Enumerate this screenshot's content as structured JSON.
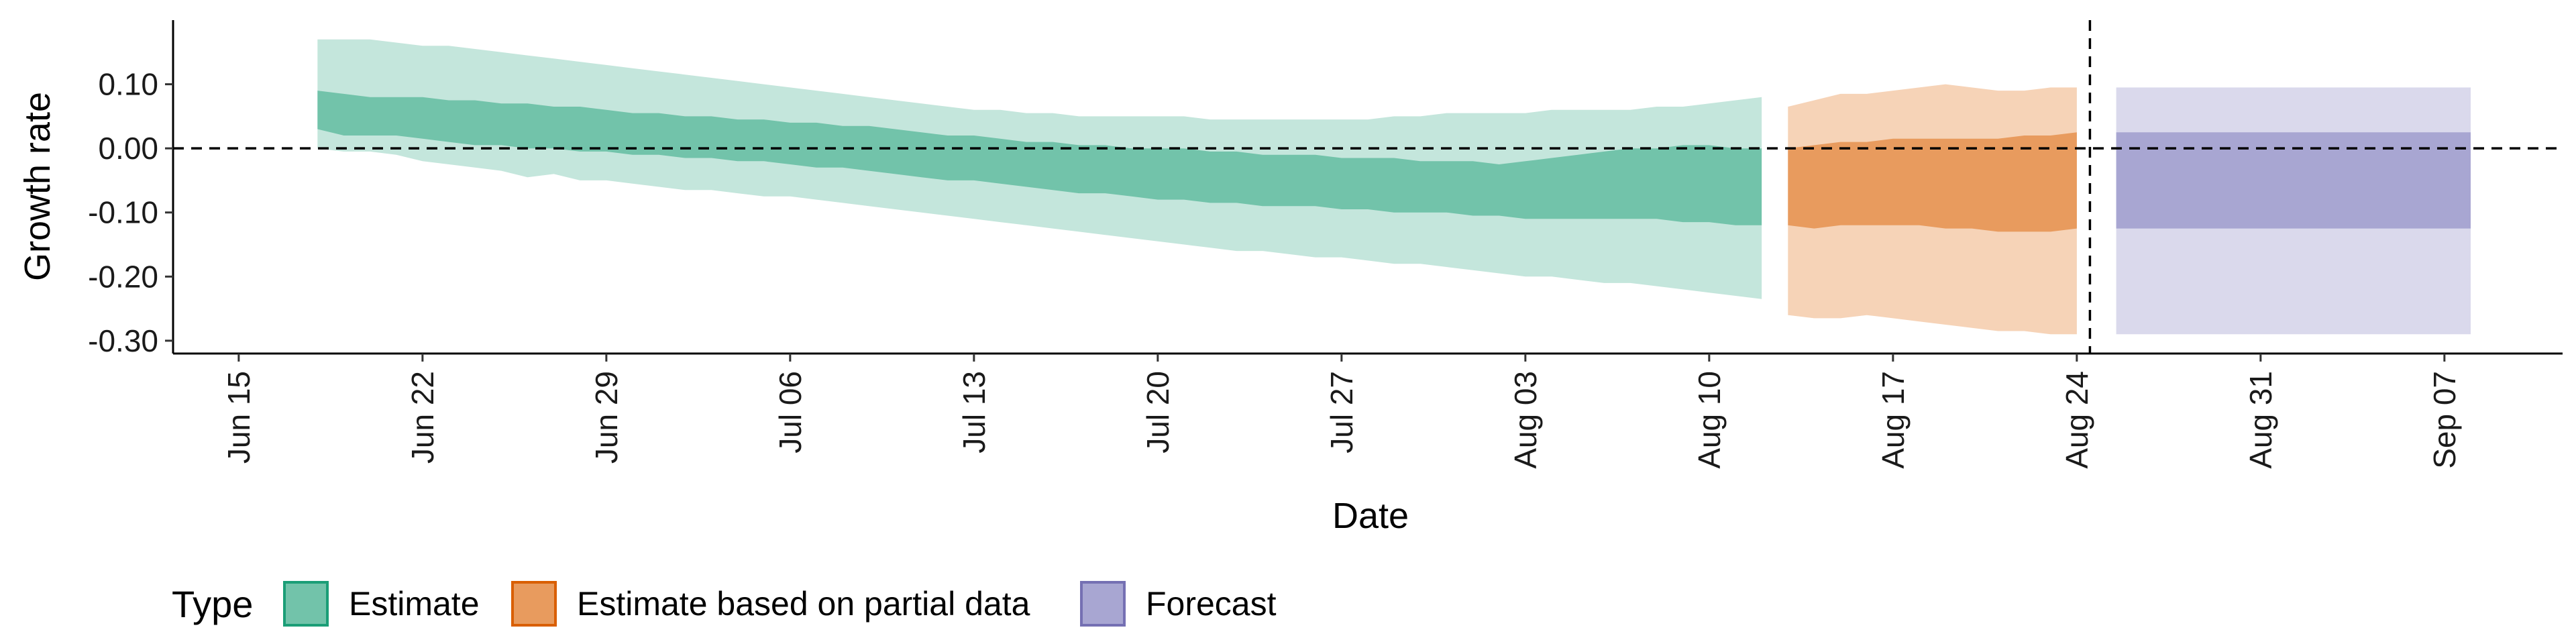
{
  "chart_data": {
    "type": "area",
    "xlabel": "Date",
    "ylabel": "Growth rate",
    "ylim": [
      -0.32,
      0.2
    ],
    "yticks": [
      {
        "value": 0.1,
        "label": "0.10"
      },
      {
        "value": 0.0,
        "label": "0.00"
      },
      {
        "value": -0.1,
        "label": "-0.10"
      },
      {
        "value": -0.2,
        "label": "-0.20"
      },
      {
        "value": -0.3,
        "label": "-0.30"
      }
    ],
    "xrange_days": [
      -2.5,
      88.5
    ],
    "xticks": [
      {
        "day": 0,
        "label": "Jun 15"
      },
      {
        "day": 7,
        "label": "Jun 22"
      },
      {
        "day": 14,
        "label": "Jun 29"
      },
      {
        "day": 21,
        "label": "Jul 06"
      },
      {
        "day": 28,
        "label": "Jul 13"
      },
      {
        "day": 35,
        "label": "Jul 20"
      },
      {
        "day": 42,
        "label": "Jul 27"
      },
      {
        "day": 49,
        "label": "Aug 03"
      },
      {
        "day": 56,
        "label": "Aug 10"
      },
      {
        "day": 63,
        "label": "Aug 17"
      },
      {
        "day": 70,
        "label": "Aug 24"
      },
      {
        "day": 77,
        "label": "Aug 31"
      },
      {
        "day": 84,
        "label": "Sep 07"
      }
    ],
    "hline": 0,
    "vline_day": 70.5,
    "grid": false,
    "legend": {
      "title": "Type",
      "position": "bottom",
      "entries": [
        {
          "label": "Estimate",
          "fill": "#72c3aa",
          "stroke": "#1b9e77"
        },
        {
          "label": "Estimate based on partial data",
          "fill": "#e89b5e",
          "stroke": "#d95f02"
        },
        {
          "label": "Forecast",
          "fill": "#a8a6d2",
          "stroke": "#7570b3"
        }
      ]
    },
    "series": [
      {
        "name": "Estimate",
        "outer_fill": "#c4e6dc",
        "inner_fill": "#72c3aa",
        "x": [
          3,
          4,
          5,
          6,
          7,
          8,
          9,
          10,
          11,
          12,
          13,
          14,
          15,
          16,
          17,
          18,
          19,
          20,
          21,
          22,
          23,
          24,
          25,
          26,
          27,
          28,
          29,
          30,
          31,
          32,
          33,
          34,
          35,
          36,
          37,
          38,
          39,
          40,
          41,
          42,
          43,
          44,
          45,
          46,
          47,
          48,
          49,
          50,
          51,
          52,
          53,
          54,
          55,
          56,
          57,
          58
        ],
        "outer_lo": [
          0.0,
          -0.005,
          -0.005,
          -0.01,
          -0.02,
          -0.025,
          -0.03,
          -0.035,
          -0.045,
          -0.04,
          -0.05,
          -0.05,
          -0.055,
          -0.06,
          -0.065,
          -0.065,
          -0.07,
          -0.075,
          -0.075,
          -0.08,
          -0.085,
          -0.09,
          -0.095,
          -0.1,
          -0.105,
          -0.11,
          -0.115,
          -0.12,
          -0.125,
          -0.13,
          -0.135,
          -0.14,
          -0.145,
          -0.15,
          -0.155,
          -0.16,
          -0.16,
          -0.165,
          -0.17,
          -0.17,
          -0.175,
          -0.18,
          -0.18,
          -0.185,
          -0.19,
          -0.195,
          -0.2,
          -0.2,
          -0.205,
          -0.21,
          -0.21,
          -0.215,
          -0.22,
          -0.225,
          -0.23,
          -0.235
        ],
        "inner_lo": [
          0.03,
          0.02,
          0.02,
          0.02,
          0.015,
          0.01,
          0.005,
          0.005,
          0.0,
          0.0,
          -0.005,
          -0.005,
          -0.01,
          -0.01,
          -0.015,
          -0.015,
          -0.02,
          -0.02,
          -0.025,
          -0.03,
          -0.03,
          -0.035,
          -0.04,
          -0.045,
          -0.05,
          -0.05,
          -0.055,
          -0.06,
          -0.065,
          -0.07,
          -0.07,
          -0.075,
          -0.08,
          -0.08,
          -0.085,
          -0.085,
          -0.09,
          -0.09,
          -0.09,
          -0.095,
          -0.095,
          -0.1,
          -0.1,
          -0.1,
          -0.105,
          -0.105,
          -0.11,
          -0.11,
          -0.11,
          -0.11,
          -0.11,
          -0.11,
          -0.115,
          -0.115,
          -0.12,
          -0.12
        ],
        "inner_hi": [
          0.09,
          0.085,
          0.08,
          0.08,
          0.08,
          0.075,
          0.075,
          0.07,
          0.07,
          0.065,
          0.065,
          0.06,
          0.055,
          0.055,
          0.05,
          0.05,
          0.045,
          0.045,
          0.04,
          0.04,
          0.035,
          0.035,
          0.03,
          0.025,
          0.02,
          0.02,
          0.015,
          0.01,
          0.01,
          0.005,
          0.005,
          0.0,
          0.0,
          0.0,
          -0.005,
          -0.005,
          -0.01,
          -0.01,
          -0.01,
          -0.015,
          -0.015,
          -0.015,
          -0.02,
          -0.02,
          -0.02,
          -0.025,
          -0.02,
          -0.015,
          -0.01,
          -0.005,
          0.0,
          0.0,
          0.005,
          0.005,
          0.0,
          0.0
        ],
        "outer_hi": [
          0.17,
          0.17,
          0.17,
          0.165,
          0.16,
          0.16,
          0.155,
          0.15,
          0.145,
          0.14,
          0.135,
          0.13,
          0.125,
          0.12,
          0.115,
          0.11,
          0.105,
          0.1,
          0.095,
          0.09,
          0.085,
          0.08,
          0.075,
          0.07,
          0.065,
          0.06,
          0.06,
          0.055,
          0.055,
          0.05,
          0.05,
          0.05,
          0.05,
          0.05,
          0.045,
          0.045,
          0.045,
          0.045,
          0.045,
          0.045,
          0.045,
          0.05,
          0.05,
          0.055,
          0.055,
          0.055,
          0.055,
          0.06,
          0.06,
          0.06,
          0.06,
          0.065,
          0.065,
          0.07,
          0.075,
          0.08
        ]
      },
      {
        "name": "Estimate based on partial data",
        "outer_fill": "#f6d3b7",
        "inner_fill": "#e89b5e",
        "x": [
          59,
          60,
          61,
          62,
          63,
          64,
          65,
          66,
          67,
          68,
          69,
          70
        ],
        "outer_lo": [
          -0.26,
          -0.265,
          -0.265,
          -0.26,
          -0.265,
          -0.27,
          -0.275,
          -0.28,
          -0.285,
          -0.285,
          -0.29,
          -0.29
        ],
        "inner_lo": [
          -0.12,
          -0.125,
          -0.12,
          -0.12,
          -0.12,
          -0.12,
          -0.125,
          -0.125,
          -0.13,
          -0.13,
          -0.13,
          -0.125
        ],
        "inner_hi": [
          0.0,
          0.005,
          0.01,
          0.01,
          0.015,
          0.015,
          0.015,
          0.015,
          0.015,
          0.02,
          0.02,
          0.025
        ],
        "outer_hi": [
          0.065,
          0.075,
          0.085,
          0.085,
          0.09,
          0.095,
          0.1,
          0.095,
          0.09,
          0.09,
          0.095,
          0.095
        ]
      },
      {
        "name": "Forecast",
        "outer_fill": "#dad9ec",
        "inner_fill": "#a8a6d2",
        "x": [
          71.5,
          85
        ],
        "outer_lo": [
          -0.29,
          -0.29
        ],
        "inner_lo": [
          -0.125,
          -0.125
        ],
        "inner_hi": [
          0.025,
          0.025
        ],
        "outer_hi": [
          0.095,
          0.095
        ]
      }
    ]
  }
}
